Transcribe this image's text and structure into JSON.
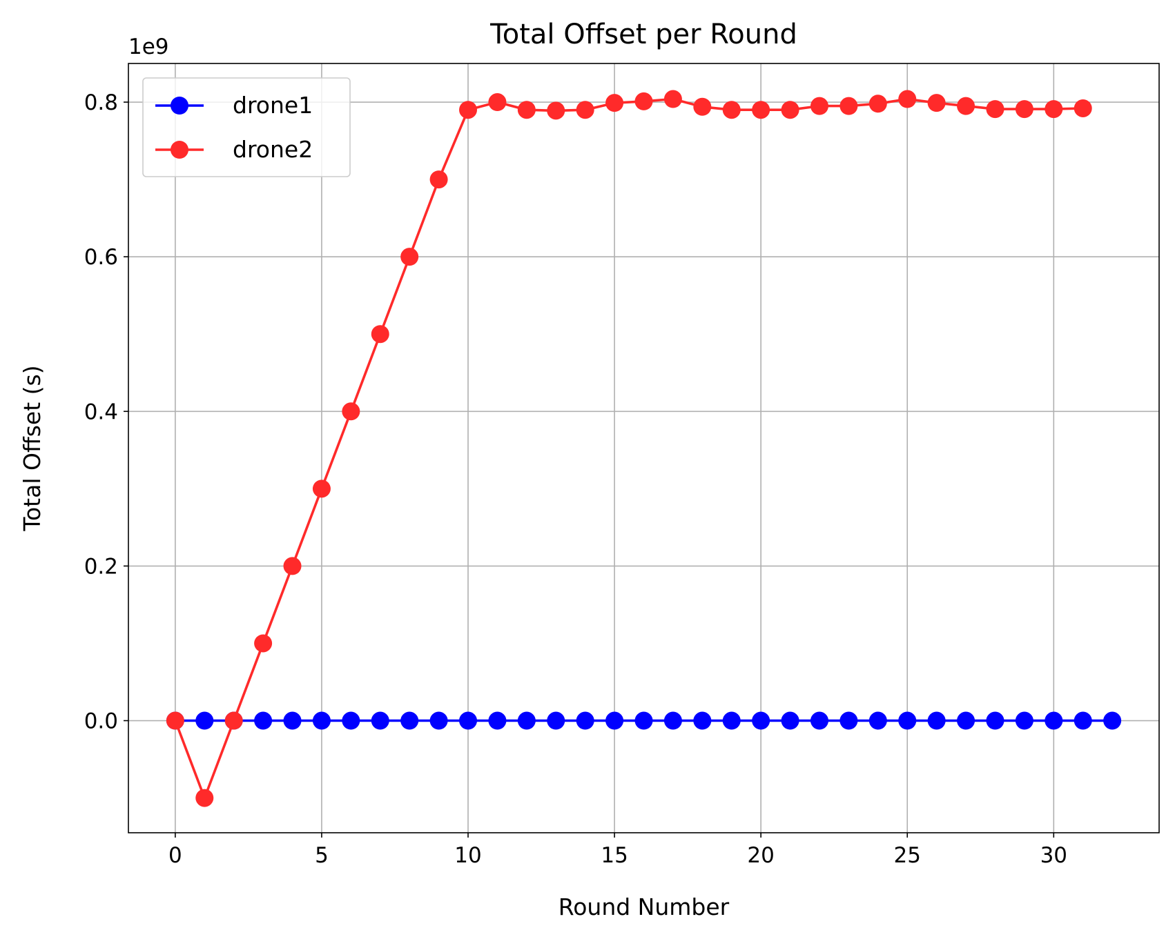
{
  "chart_data": {
    "type": "line",
    "title": "Total Offset per Round",
    "xlabel": "Round Number",
    "ylabel": "Total Offset (s)",
    "y_scale_label": "1e9",
    "xlim": [
      -1.6,
      33.6
    ],
    "ylim": [
      -145000000,
      850000000
    ],
    "x_ticks": [
      0,
      5,
      10,
      15,
      20,
      25,
      30
    ],
    "x_tick_labels": [
      "0",
      "5",
      "10",
      "15",
      "20",
      "25",
      "30"
    ],
    "y_ticks": [
      0,
      200000000,
      400000000,
      600000000,
      800000000
    ],
    "y_tick_labels": [
      "0.0",
      "0.2",
      "0.4",
      "0.6",
      "0.8"
    ],
    "grid": true,
    "legend_position": "top-left",
    "series": [
      {
        "name": "drone1",
        "color": "#0000ff",
        "marker": "circle",
        "x": [
          0,
          1,
          2,
          3,
          4,
          5,
          6,
          7,
          8,
          9,
          10,
          11,
          12,
          13,
          14,
          15,
          16,
          17,
          18,
          19,
          20,
          21,
          22,
          23,
          24,
          25,
          26,
          27,
          28,
          29,
          30,
          31,
          32
        ],
        "y": [
          0,
          0,
          0,
          0,
          0,
          0,
          0,
          0,
          0,
          0,
          0,
          0,
          0,
          0,
          0,
          0,
          0,
          0,
          0,
          0,
          0,
          0,
          0,
          0,
          0,
          0,
          0,
          0,
          0,
          0,
          0,
          0,
          0
        ]
      },
      {
        "name": "drone2",
        "color": "#ff2a2a",
        "marker": "circle",
        "x": [
          0,
          1,
          2,
          3,
          4,
          5,
          6,
          7,
          8,
          9,
          10,
          11,
          12,
          13,
          14,
          15,
          16,
          17,
          18,
          19,
          20,
          21,
          22,
          23,
          24,
          25,
          26,
          27,
          28,
          29,
          30,
          31
        ],
        "y": [
          0,
          -100000000,
          0,
          100000000,
          200000000,
          300000000,
          400000000,
          500000000,
          600000000,
          700000000,
          790000000,
          800000000,
          790000000,
          789000000,
          790000000,
          799000000,
          801000000,
          804000000,
          794000000,
          790000000,
          790000000,
          790000000,
          795000000,
          795000000,
          798000000,
          804000000,
          799000000,
          795000000,
          791000000,
          791000000,
          791000000,
          792000000
        ]
      }
    ]
  }
}
